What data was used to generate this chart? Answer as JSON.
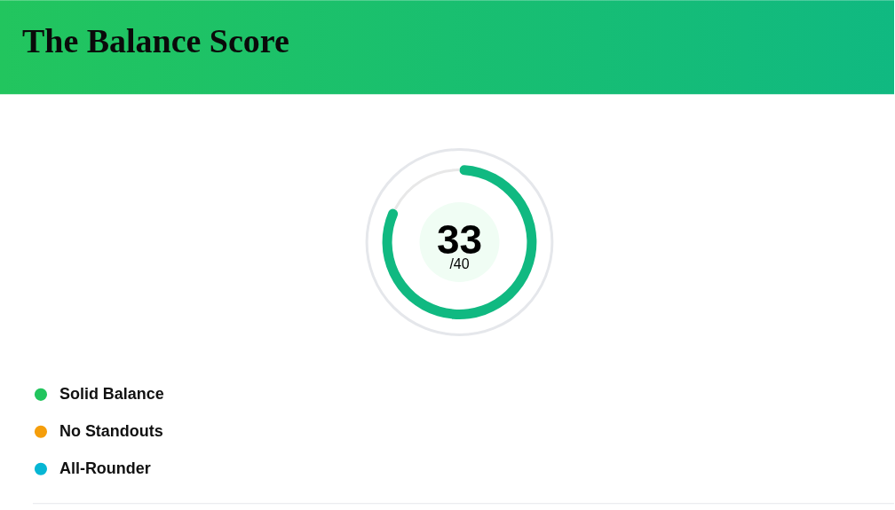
{
  "chart_data": [
    {
      "type": "donut",
      "title": "The Balance Score",
      "categories": [
        null,
        null
      ],
      "values": [
        82.5,
        17.5
      ],
      "colors": [
        "#10b981",
        "#e8e8e8"
      ],
      "annotations": [
        "33",
        "/40"
      ]
    },
    {
      "type": "other",
      "categories": [
        "Solid Balance",
        "No Standouts",
        "All-Rounder"
      ],
      "colors": [
        "#22c55e",
        "#f59e0b",
        "#06b6d4"
      ]
    }
  ]
}
